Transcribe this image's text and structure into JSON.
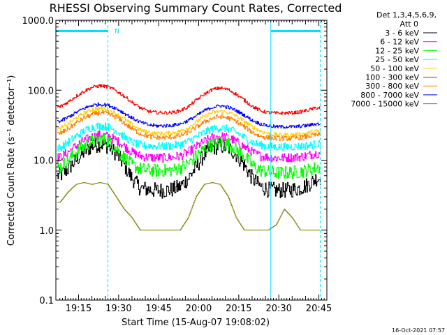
{
  "chart_data": {
    "type": "line",
    "title": "RHESSI Observing Summary Count Rates, Corrected",
    "xlabel": "Start Time (15-Aug-07 19:08:02)",
    "ylabel": "Corrected Count Rate (s⁻¹ detector⁻¹)",
    "yscale": "log",
    "ylim": [
      0.1,
      1000
    ],
    "xlim_minutes": [
      -1.5,
      100
    ],
    "x_unit": "minutes after 19:08:02",
    "ytick_labels": [
      "0.1",
      "1.0",
      "10.0",
      "100.0",
      "1000.0"
    ],
    "ytick_values": [
      0.1,
      1,
      10,
      100,
      1000
    ],
    "xtick_labels": [
      "19:15",
      "19:30",
      "19:45",
      "20:00",
      "20:15",
      "20:30",
      "20:45"
    ],
    "xtick_values": [
      7,
      22,
      37,
      52,
      67,
      82,
      97
    ],
    "legend": {
      "header": [
        "Det 1,3,4,5,6,9,",
        "Att 0"
      ],
      "placement": "right"
    },
    "timestamp": "16-Oct-2021 07:57",
    "annotations": [
      {
        "type": "flag-bar",
        "x_start": -1.5,
        "x_end": 18,
        "y": 700,
        "color": "#00e0ff"
      },
      {
        "type": "flag-bar",
        "x_start": 79,
        "x_end": 97.5,
        "y": 700,
        "color": "#00e0ff"
      },
      {
        "type": "flag-label",
        "text": "N",
        "x": 20.5,
        "y": 700,
        "color": "#00e0ff"
      },
      {
        "type": "vline",
        "x": -1.5,
        "style": "solid",
        "color": "#00e0ff"
      },
      {
        "type": "vline",
        "x": 18,
        "style": "dashed",
        "color": "#00e0ff"
      },
      {
        "type": "vline",
        "x": 79,
        "style": "solid",
        "color": "#00e0ff"
      },
      {
        "type": "vline",
        "x": 97.5,
        "style": "dashed",
        "color": "#00e0ff"
      }
    ],
    "x": [
      0,
      3,
      6,
      9,
      12,
      15,
      18,
      21,
      24,
      27,
      30,
      33,
      36,
      39,
      42,
      45,
      48,
      51,
      54,
      57,
      60,
      63,
      66,
      69,
      72,
      75,
      78,
      81,
      84,
      87,
      90,
      93,
      96
    ],
    "series": [
      {
        "name": "3 - 6 keV",
        "color": "#000000",
        "noise": 0.12,
        "values": [
          6,
          7.5,
          10,
          13,
          16,
          17,
          16,
          12.5,
          8.5,
          5.5,
          4,
          3.8,
          3.7,
          3.7,
          3.8,
          4.2,
          5.5,
          8,
          12,
          15,
          16,
          15,
          12,
          8.5,
          5.5,
          4.2,
          3.8,
          3.7,
          3.7,
          3.8,
          4,
          4.5,
          5.5
        ]
      },
      {
        "name": "6 - 12 keV",
        "color": "#ff00ff",
        "noise": 0.07,
        "values": [
          11,
          13,
          16,
          19,
          21.5,
          23,
          22,
          19.5,
          16,
          13,
          11.5,
          11,
          10.8,
          10.8,
          11,
          11.5,
          13,
          15.5,
          18.5,
          21,
          22,
          21,
          18.5,
          15.5,
          13,
          11.5,
          11,
          10.8,
          10.8,
          11,
          11.2,
          11.8,
          12.5
        ]
      },
      {
        "name": "12 - 25 keV",
        "color": "#00ff00",
        "noise": 0.1,
        "values": [
          8,
          10,
          13,
          16,
          18.5,
          20,
          19,
          15,
          11,
          8.5,
          7.5,
          7.2,
          7.1,
          7.1,
          7.2,
          7.8,
          9,
          11.5,
          14.5,
          17,
          18,
          17,
          14.5,
          11.5,
          8.5,
          7.2,
          6.8,
          6.6,
          6.6,
          6.7,
          6.9,
          7.2,
          7.8
        ]
      },
      {
        "name": "25 - 50 keV",
        "color": "#00ffff",
        "noise": 0.06,
        "values": [
          15,
          18,
          22,
          26,
          29.5,
          31,
          30,
          26.5,
          21.5,
          18,
          16.5,
          16,
          15.8,
          15.8,
          16,
          16.8,
          18.5,
          21.5,
          25,
          28,
          29,
          28,
          25,
          21,
          18,
          16.5,
          15.8,
          15.5,
          15.5,
          15.6,
          15.8,
          16.2,
          17
        ]
      },
      {
        "name": "50 - 100 keV",
        "color": "#ffd000",
        "noise": 0.03,
        "values": [
          28,
          33,
          40,
          47,
          53,
          55,
          53,
          46,
          39,
          32,
          27,
          25,
          24,
          24,
          24.5,
          26,
          29,
          35,
          42,
          48,
          50,
          48,
          43,
          36,
          30,
          26,
          24,
          23,
          23,
          23,
          23.5,
          24.5,
          26
        ]
      },
      {
        "name": "100 - 300 keV",
        "color": "#ff0000",
        "noise": 0.025,
        "values": [
          58,
          68,
          82,
          97,
          110,
          116,
          112,
          98,
          82,
          67,
          56,
          50,
          48,
          47.5,
          48,
          51,
          58,
          72,
          88,
          102,
          108,
          102,
          88,
          72,
          59,
          51,
          48,
          47,
          47,
          47.5,
          49,
          52,
          56
        ]
      },
      {
        "name": "300 - 800 keV",
        "color": "#ff8000",
        "noise": 0.035,
        "values": [
          24,
          28,
          34,
          40,
          45,
          48,
          46,
          41,
          34,
          28,
          24,
          22,
          21,
          21,
          21.5,
          22.5,
          25,
          29.5,
          35,
          40,
          42,
          40,
          36,
          30,
          25,
          22,
          21,
          20.5,
          20.5,
          20.5,
          21,
          22,
          23
        ]
      },
      {
        "name": "800 - 7000 keV",
        "color": "#0000ff",
        "noise": 0.025,
        "values": [
          36,
          41,
          48,
          55,
          61,
          63,
          61,
          55,
          47,
          40,
          35,
          32,
          31,
          31,
          31.5,
          33,
          37,
          43,
          51,
          57,
          60,
          57,
          51,
          44,
          37,
          33,
          31,
          30,
          30,
          30,
          30.5,
          31.5,
          33
        ]
      },
      {
        "name": "7000 - 15000 keV",
        "color": "#808000",
        "noise": 0.0,
        "values": [
          2.5,
          3.5,
          4.5,
          4.8,
          4.5,
          4.8,
          4.5,
          3,
          2,
          1.5,
          1,
          1,
          1,
          1,
          1,
          1,
          1.5,
          3,
          4.5,
          4.8,
          4.5,
          3,
          1.5,
          1,
          1,
          1,
          1,
          1.2,
          2,
          1.5,
          1,
          1,
          1
        ]
      }
    ]
  }
}
